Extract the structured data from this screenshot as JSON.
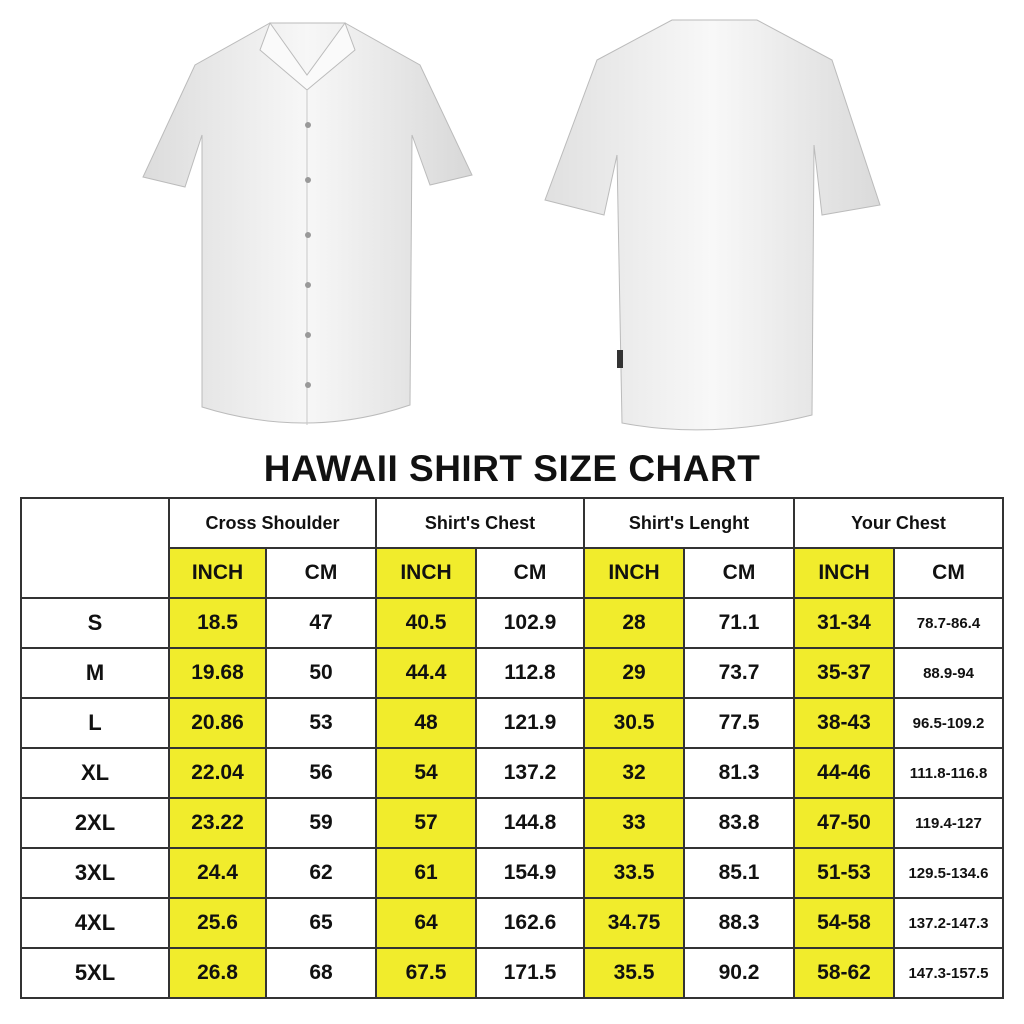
{
  "title": "HAWAII SHIRT SIZE CHART",
  "colors": {
    "inch_highlight": "#f1ec2c",
    "border": "#333333"
  },
  "groups": [
    "Cross Shoulder",
    "Shirt's Chest",
    "Shirt's Lenght",
    "Your Chest"
  ],
  "units": [
    "INCH",
    "CM"
  ],
  "rows": [
    {
      "size": "S",
      "values": [
        "18.5",
        "47",
        "40.5",
        "102.9",
        "28",
        "71.1",
        "31-34",
        "78.7-86.4"
      ]
    },
    {
      "size": "M",
      "values": [
        "19.68",
        "50",
        "44.4",
        "112.8",
        "29",
        "73.7",
        "35-37",
        "88.9-94"
      ]
    },
    {
      "size": "L",
      "values": [
        "20.86",
        "53",
        "48",
        "121.9",
        "30.5",
        "77.5",
        "38-43",
        "96.5-109.2"
      ]
    },
    {
      "size": "XL",
      "values": [
        "22.04",
        "56",
        "54",
        "137.2",
        "32",
        "81.3",
        "44-46",
        "111.8-116.8"
      ]
    },
    {
      "size": "2XL",
      "values": [
        "23.22",
        "59",
        "57",
        "144.8",
        "33",
        "83.8",
        "47-50",
        "119.4-127"
      ]
    },
    {
      "size": "3XL",
      "values": [
        "24.4",
        "62",
        "61",
        "154.9",
        "33.5",
        "85.1",
        "51-53",
        "129.5-134.6"
      ]
    },
    {
      "size": "4XL",
      "values": [
        "25.6",
        "65",
        "64",
        "162.6",
        "34.75",
        "88.3",
        "54-58",
        "137.2-147.3"
      ]
    },
    {
      "size": "5XL",
      "values": [
        "26.8",
        "68",
        "67.5",
        "171.5",
        "35.5",
        "90.2",
        "58-62",
        "147.3-157.5"
      ]
    }
  ]
}
